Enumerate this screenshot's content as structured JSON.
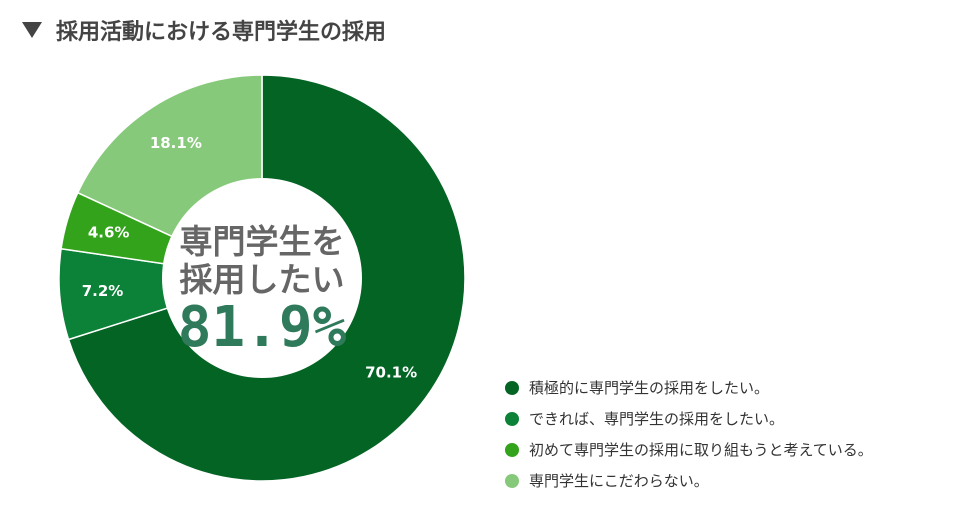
{
  "header": {
    "title": "採用活動における専門学生の採用",
    "marker_icon": "triangle-down-icon"
  },
  "center": {
    "line1": "専門学生を",
    "line2": "採用したい",
    "value": "81.9%"
  },
  "chart_data": {
    "type": "pie",
    "title": "採用活動における専門学生の採用",
    "donut": true,
    "start_angle_deg": 0,
    "direction": "clockwise",
    "slices": [
      {
        "label": "積極的に専門学生の採用をしたい。",
        "value": 70.1,
        "display": "70.1%",
        "color": "#036424"
      },
      {
        "label": "できれば、専門学生の採用をしたい。",
        "value": 7.2,
        "display": "7.2%",
        "color": "#0b8237"
      },
      {
        "label": "初めて専門学生の採用に取り組もうと考えている。",
        "value": 4.6,
        "display": "4.6%",
        "color": "#33a31c"
      },
      {
        "label": "専門学生にこだわらない。",
        "value": 18.1,
        "display": "18.1%",
        "color": "#86c97a"
      }
    ],
    "legend_position": "bottom-right"
  }
}
